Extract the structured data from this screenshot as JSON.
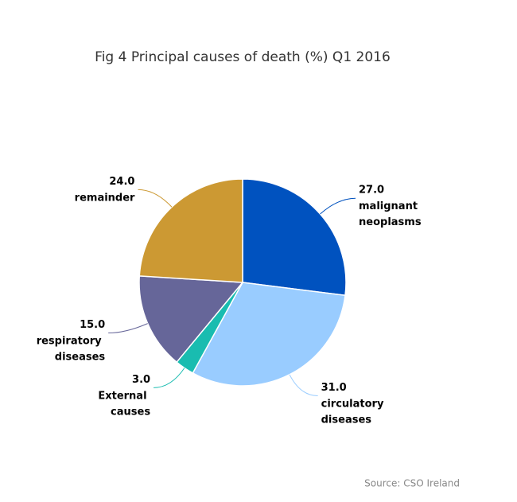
{
  "chart_data": {
    "type": "pie",
    "title": "Fig 4 Principal causes of death (%) Q1 2016",
    "categories": [
      "malignant neoplasms",
      "circulatory diseases",
      "External causes",
      "respiratory diseases",
      "remainder"
    ],
    "values": [
      27,
      31,
      3,
      15,
      24
    ],
    "value_labels": [
      "27.0",
      "31.0",
      "3.0",
      "15.0",
      "24.0"
    ],
    "colors": [
      "#0052bf",
      "#99ccff",
      "#19bcb0",
      "#666699",
      "#cc9933"
    ],
    "source": "Source: CSO Ireland"
  }
}
